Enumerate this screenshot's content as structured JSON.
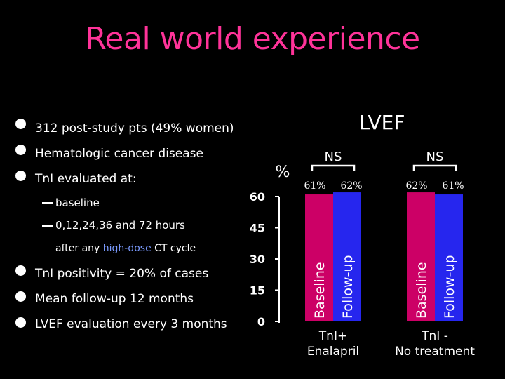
{
  "title": "Real world experience",
  "bullets": [
    "312 post-study pts (49% women)",
    "Hematologic cancer disease",
    "TnI evaluated at:",
    "TnI positivity = 20% of cases",
    "Mean follow-up 12 months",
    "LVEF evaluation every 3 months"
  ],
  "sub_bullets": [
    "baseline",
    "0,12,24,36 and 72 hours"
  ],
  "after_line": {
    "before": "after any",
    "highlight": "high-dose",
    "after": "CT cycle"
  },
  "colors": {
    "title": "#ff3399",
    "baseline": "#cc0066",
    "followup": "#2626ee",
    "highlight": "#7b9bff"
  },
  "chart_data": {
    "type": "bar",
    "title": "LVEF",
    "ylabel": "%",
    "ylim": [
      0,
      60
    ],
    "yticks": [
      0,
      15,
      30,
      45,
      60
    ],
    "groups": [
      {
        "label_lines": [
          "TnI+",
          "Enalapril"
        ],
        "significance": "NS",
        "bars": [
          {
            "series": "Baseline",
            "value": 61,
            "value_label": "61%"
          },
          {
            "series": "Follow-up",
            "value": 62,
            "value_label": "62%"
          }
        ]
      },
      {
        "label_lines": [
          "TnI -",
          "No treatment"
        ],
        "significance": "NS",
        "bars": [
          {
            "series": "Baseline",
            "value": 62,
            "value_label": "62%"
          },
          {
            "series": "Follow-up",
            "value": 61,
            "value_label": "61%"
          }
        ]
      }
    ]
  }
}
